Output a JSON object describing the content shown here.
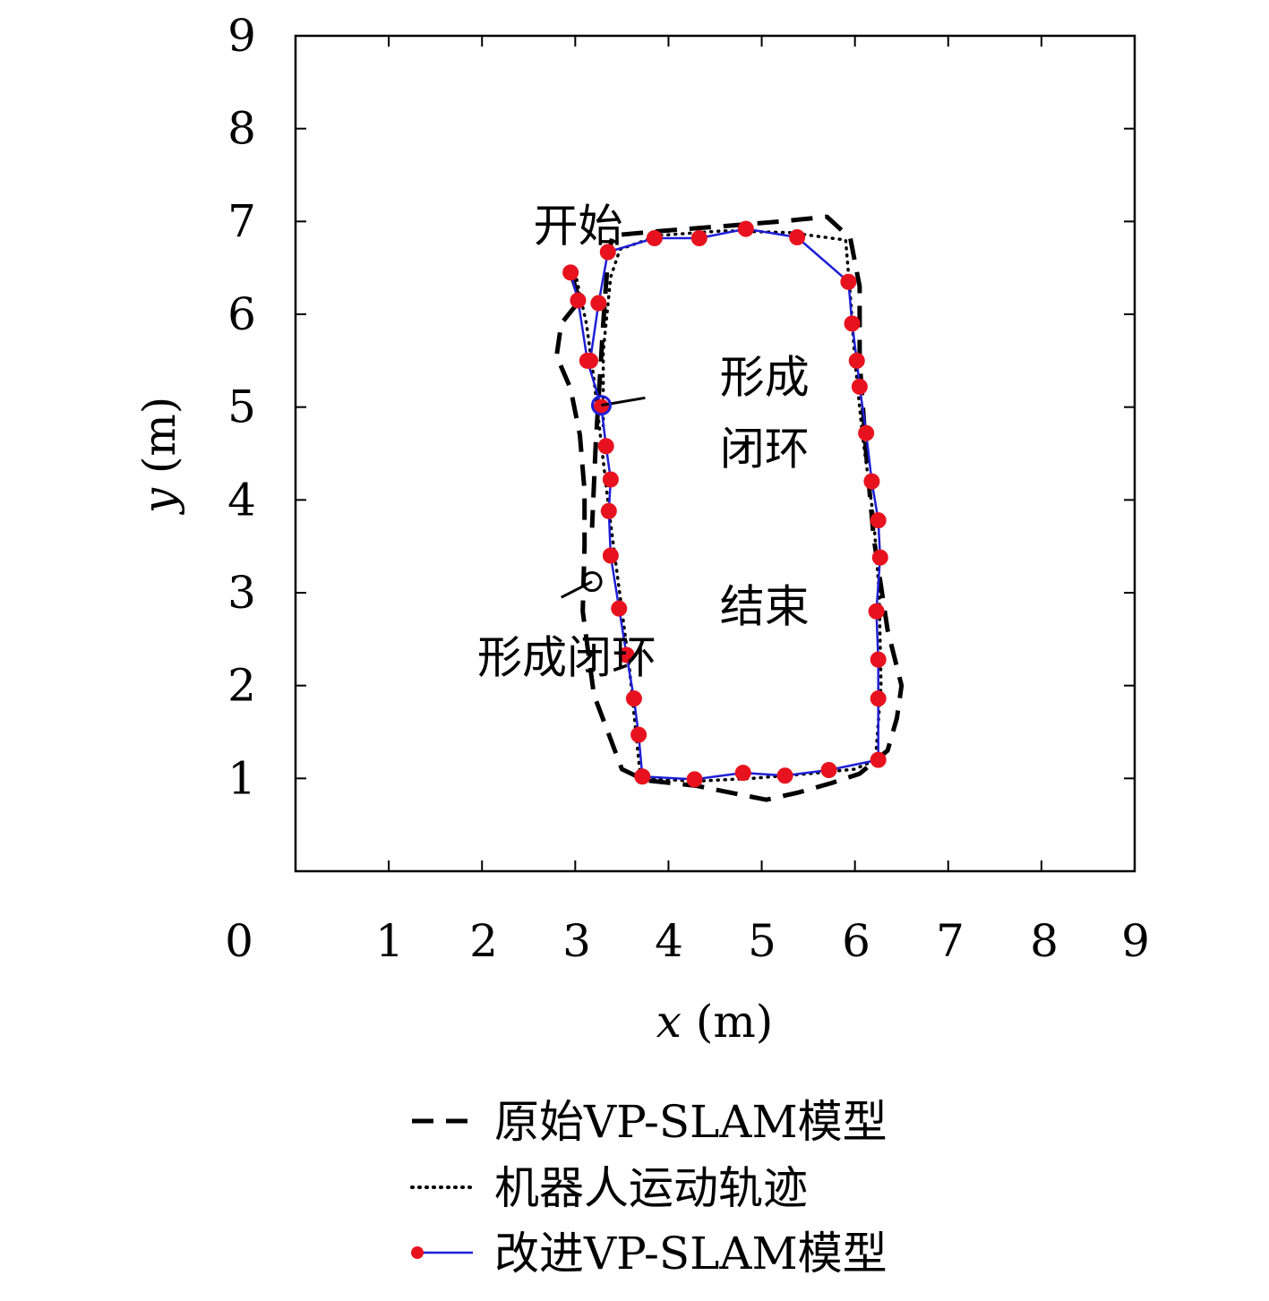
{
  "chart_data": {
    "type": "line",
    "xlabel": "x (m)",
    "ylabel": "y (m)",
    "xlabel_var": "x",
    "ylabel_var": "y",
    "axis_unit": "(m)",
    "xlim": [
      0,
      9
    ],
    "ylim": [
      0,
      9
    ],
    "xticks": [
      0,
      1,
      2,
      3,
      4,
      5,
      6,
      7,
      8,
      9
    ],
    "yticks": [
      1,
      2,
      3,
      4,
      5,
      6,
      7,
      8,
      9
    ],
    "grid": false,
    "legend_position": "bottom",
    "colors": {
      "original": "#000000",
      "trajectory": "#000000",
      "improved_line": "#1f1fd6",
      "improved_marker": "#e8121e"
    },
    "annotations": [
      {
        "text": "开始",
        "x": 2.55,
        "y": 6.95
      },
      {
        "text": "形成",
        "x": 4.55,
        "y": 5.32
      },
      {
        "text": "闭环",
        "x": 4.55,
        "y": 4.55
      },
      {
        "text": "结束",
        "x": 4.55,
        "y": 2.85
      },
      {
        "text": "形成闭环",
        "x": 1.95,
        "y": 2.3
      }
    ],
    "loop_markers": [
      {
        "x": 3.28,
        "y": 5.02,
        "color": "#1f1fd6",
        "leader_to": [
          3.75,
          5.1
        ]
      },
      {
        "x": 3.18,
        "y": 3.12,
        "color": "#000000",
        "leader_to": [
          2.85,
          2.95
        ]
      }
    ],
    "series": [
      {
        "name": "原始VP-SLAM模型",
        "style": "dashed",
        "x": [
          2.95,
          3.05,
          2.85,
          2.8,
          2.95,
          3.05,
          3.1,
          3.1,
          3.08,
          3.2,
          3.5,
          3.75,
          4.3,
          4.75,
          5.05,
          5.4,
          5.75,
          6.05,
          6.35,
          6.45,
          6.5,
          6.35,
          6.2,
          6.12,
          6.05,
          6.05,
          5.95,
          5.7,
          5.2,
          4.6,
          3.95,
          3.4,
          3.35,
          3.3,
          3.22,
          3.18
        ],
        "y": [
          6.45,
          6.15,
          5.9,
          5.55,
          5.2,
          4.7,
          4.1,
          3.5,
          2.8,
          1.9,
          1.1,
          0.98,
          0.92,
          0.83,
          0.77,
          0.85,
          0.95,
          1.05,
          1.3,
          1.65,
          2.0,
          2.6,
          3.6,
          4.5,
          5.5,
          6.3,
          6.82,
          7.05,
          7.0,
          6.95,
          6.9,
          6.85,
          6.6,
          5.9,
          4.6,
          3.7
        ]
      },
      {
        "name": "机器人运动轨迹",
        "style": "dotted",
        "x": [
          3.0,
          3.12,
          3.2,
          3.28,
          3.36,
          3.45,
          3.58,
          3.7,
          4.3,
          4.9,
          5.5,
          6.0,
          6.22,
          6.28,
          6.26,
          6.2,
          6.08,
          6.0,
          5.95,
          5.9,
          5.3,
          4.6,
          3.9,
          3.48,
          3.38,
          3.3,
          3.3
        ],
        "y": [
          6.45,
          5.9,
          5.3,
          4.6,
          3.9,
          3.2,
          2.2,
          1.0,
          0.97,
          1.0,
          1.05,
          1.1,
          1.2,
          2.0,
          3.0,
          3.8,
          4.7,
          5.5,
          6.2,
          6.8,
          6.88,
          6.9,
          6.85,
          6.7,
          6.4,
          5.6,
          4.8
        ]
      },
      {
        "name": "改进VP-SLAM模型",
        "style": "solid-markers",
        "x": [
          2.95,
          3.03,
          3.13,
          3.28,
          3.33,
          3.38,
          3.36,
          3.38,
          3.47,
          3.55,
          3.63,
          3.68,
          3.72,
          4.28,
          4.8,
          5.25,
          5.72,
          6.25,
          6.25,
          6.25,
          6.23,
          6.27,
          6.25,
          6.18,
          6.12,
          6.05,
          6.02,
          5.97,
          5.93,
          5.38,
          4.83,
          4.33,
          3.85,
          3.35,
          3.25,
          3.16
        ],
        "y": [
          6.45,
          6.15,
          5.5,
          5.0,
          4.58,
          4.22,
          3.88,
          3.4,
          2.83,
          2.33,
          1.86,
          1.47,
          1.02,
          0.99,
          1.06,
          1.03,
          1.09,
          1.2,
          1.86,
          2.28,
          2.8,
          3.38,
          3.78,
          4.2,
          4.72,
          5.22,
          5.5,
          5.9,
          6.35,
          6.83,
          6.92,
          6.82,
          6.82,
          6.67,
          6.12,
          5.5
        ]
      }
    ]
  }
}
